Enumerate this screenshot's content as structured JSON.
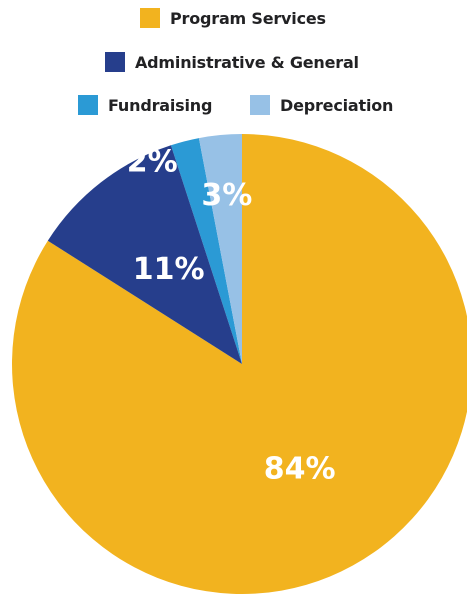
{
  "chart_data": {
    "type": "pie",
    "categories": [
      "Program Services",
      "Administrative & General",
      "Fundraising",
      "Depreciation"
    ],
    "values": [
      84,
      11,
      2,
      3
    ],
    "labels": [
      "84%",
      "11%",
      "2%",
      "3%"
    ],
    "colors": [
      "#F2B31F",
      "#263E8C",
      "#2B9AD5",
      "#97C1E6"
    ],
    "title": "",
    "legend": "top"
  }
}
